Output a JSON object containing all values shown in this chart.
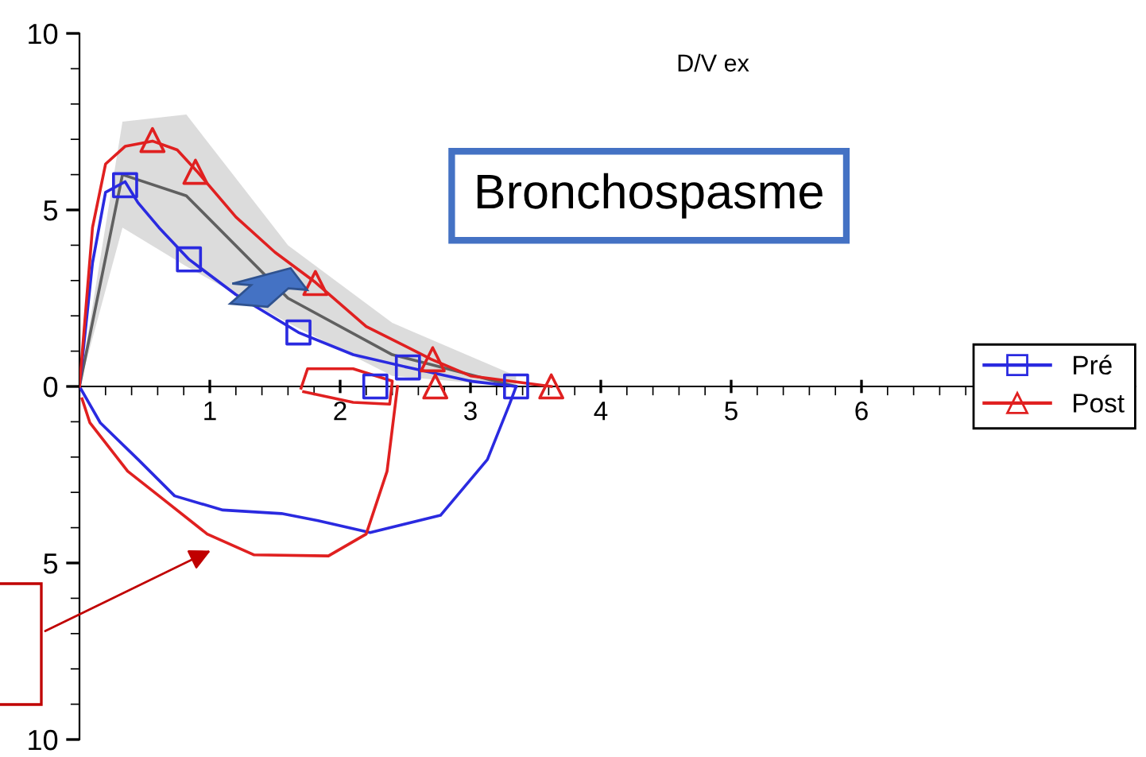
{
  "chart_data": {
    "type": "line",
    "title": "D/V ex",
    "annotations": [
      "Bronchospasme"
    ],
    "xlim": [
      0,
      8.1
    ],
    "xticks": [
      1,
      2,
      3,
      4,
      5,
      6
    ],
    "ylim": [
      -10,
      10
    ],
    "yticks": [
      {
        "value": -10,
        "label": "10"
      },
      {
        "value": -5,
        "label": "5"
      },
      0,
      5,
      10
    ],
    "grid": false,
    "legend": "right",
    "series": [
      {
        "color": "#606060",
        "x": [
          0,
          0.33,
          0.82,
          1.6,
          2.4,
          3.35
        ],
        "values": [
          0,
          6.0,
          5.4,
          2.5,
          0.9,
          0
        ],
        "lower": [
          0,
          4.5,
          3.4,
          1.8,
          0.3,
          0
        ],
        "upper": [
          0,
          7.5,
          7.7,
          4.0,
          1.8,
          0.3
        ]
      },
      {
        "name": "Pré",
        "color": "#2a2ae0",
        "x": [
          0,
          0.1,
          0.2,
          0.35,
          0.45,
          0.61,
          0.84,
          1.2,
          1.68,
          2.1,
          2.52,
          3.0,
          3.35
        ],
        "values": [
          0,
          3.5,
          5.5,
          5.8,
          5.2,
          4.5,
          3.6,
          2.6,
          1.53,
          0.9,
          0.54,
          0.15,
          0
        ]
      },
      {
        "color": "#2a2ae0",
        "x": [
          0,
          0.16,
          0.45,
          0.73,
          1.1,
          1.55,
          1.83,
          2.23,
          2.77,
          3.13,
          3.3,
          3.35
        ],
        "values": [
          0,
          -1.03,
          -2.07,
          -3.1,
          -3.5,
          -3.6,
          -3.8,
          -4.14,
          -3.65,
          -2.07,
          -0.5,
          0
        ]
      },
      {
        "name": "Post",
        "color": "#e02020",
        "x": [
          0,
          0.1,
          0.2,
          0.35,
          0.56,
          0.75,
          0.9,
          1.2,
          1.5,
          1.81,
          2.2,
          2.7,
          3.0,
          3.62
        ],
        "values": [
          0,
          4.5,
          6.3,
          6.8,
          6.95,
          6.7,
          6.1,
          4.8,
          3.8,
          2.95,
          1.7,
          0.77,
          0.3,
          0
        ]
      },
      {
        "color": "#e02020",
        "x": [
          0.02,
          0.08,
          0.37,
          0.61,
          0.98,
          1.34,
          1.91,
          2.2,
          2.36,
          2.44
        ],
        "values": [
          -0.35,
          -1.03,
          -2.4,
          -3.1,
          -4.18,
          -4.77,
          -4.8,
          -4.18,
          -2.4,
          0
        ]
      },
      {
        "color": "#e02020",
        "x": [
          1.7,
          1.75,
          2.1,
          2.4,
          2.38,
          2.1,
          1.72
        ],
        "values": [
          -0.05,
          0.5,
          0.5,
          0.15,
          -0.5,
          -0.45,
          -0.15
        ]
      },
      {
        "type": "scatter",
        "color": "#2a2ae0",
        "marker": "square",
        "x": [
          0.35,
          0.84,
          1.68,
          2.52,
          3.35,
          2.27
        ],
        "values": [
          5.7,
          3.6,
          1.53,
          0.54,
          0,
          0
        ]
      },
      {
        "type": "scatter",
        "color": "#e02020",
        "marker": "triangle",
        "x": [
          0.56,
          0.89,
          1.81,
          2.71,
          2.73,
          3.62
        ],
        "values": [
          6.98,
          6.08,
          2.93,
          0.77,
          0,
          0
        ]
      }
    ]
  }
}
